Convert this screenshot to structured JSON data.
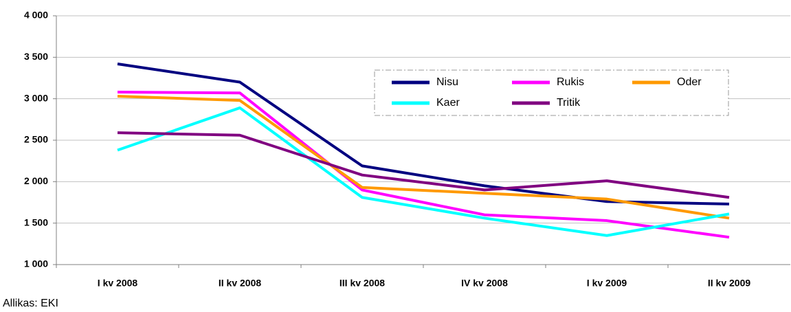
{
  "chart_data": {
    "type": "line",
    "categories": [
      "I kv 2008",
      "II kv 2008",
      "III kv 2008",
      "IV kv 2008",
      "I kv 2009",
      "II kv 2009"
    ],
    "series": [
      {
        "name": "Nisu",
        "color": "#000080",
        "values": [
          3420,
          3200,
          2190,
          1950,
          1760,
          1730
        ]
      },
      {
        "name": "Rukis",
        "color": "#ff00ff",
        "values": [
          3080,
          3070,
          1900,
          1600,
          1530,
          1330
        ]
      },
      {
        "name": "Oder",
        "color": "#ff9900",
        "values": [
          3030,
          2980,
          1930,
          1860,
          1790,
          1560
        ]
      },
      {
        "name": "Kaer",
        "color": "#00ffff",
        "values": [
          2380,
          2890,
          1810,
          1560,
          1350,
          1610
        ]
      },
      {
        "name": "Tritik",
        "color": "#800080",
        "values": [
          2590,
          2560,
          2080,
          1900,
          2010,
          1810
        ]
      }
    ],
    "ylim": [
      1000,
      4000
    ],
    "yticks": [
      {
        "value": 1000,
        "label": "1 000"
      },
      {
        "value": 1500,
        "label": "1 500"
      },
      {
        "value": 2000,
        "label": "2 000"
      },
      {
        "value": 2500,
        "label": "2 500"
      },
      {
        "value": 3000,
        "label": "3 000"
      },
      {
        "value": 3500,
        "label": "3 500"
      },
      {
        "value": 4000,
        "label": "4 000"
      }
    ],
    "grid": true,
    "legend": "top-right",
    "source": "Allikas: EKI"
  }
}
